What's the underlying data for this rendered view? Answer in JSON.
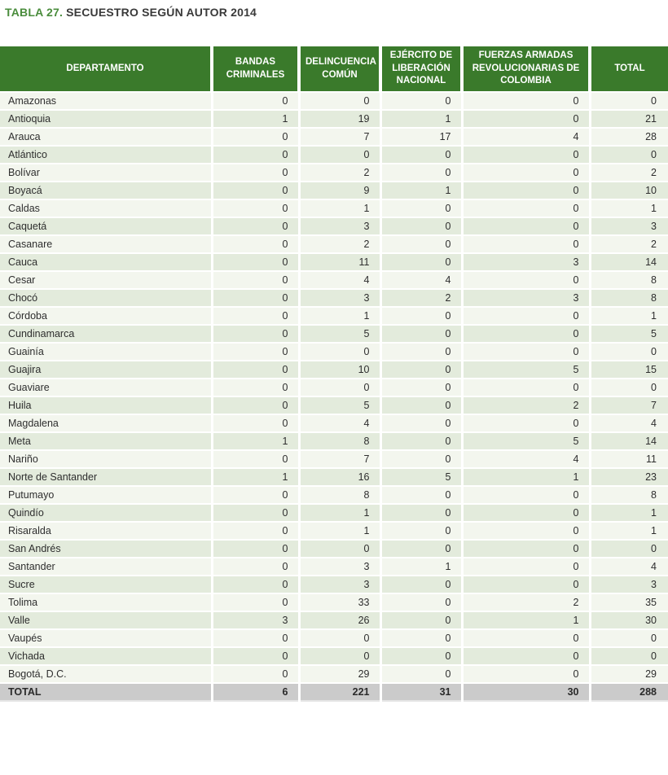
{
  "title": {
    "prefix": "TABLA 27.",
    "text": "SECUESTRO SEGÚN AUTOR 2014"
  },
  "colors": {
    "header_green": "#3a7a2b",
    "title_green": "#4a8c3c",
    "row_light": "#f3f6ee",
    "row_dark": "#e3ebdc",
    "total_row_gray": "#cbcbcb"
  },
  "chart_data": {
    "type": "table",
    "title": "TABLA 27. SECUESTRO SEGÚN AUTOR 2014",
    "columns": [
      "DEPARTAMENTO",
      "BANDAS CRIMINALES",
      "DELINCUENCIA COMÚN",
      "EJÉRCITO DE LIBERACIÓN NACIONAL",
      "FUERZAS ARMADAS REVOLUCIONARIAS DE COLOMBIA",
      "TOTAL"
    ],
    "rows": [
      {
        "department": "Amazonas",
        "values": [
          "0",
          "0",
          "0",
          "0",
          "0"
        ]
      },
      {
        "department": "Antioquia",
        "values": [
          "1",
          "19",
          "1",
          "0",
          "21"
        ]
      },
      {
        "department": "Arauca",
        "values": [
          "0",
          "7",
          "17",
          "4",
          "28"
        ]
      },
      {
        "department": "Atlántico",
        "values": [
          "0",
          "0",
          "0",
          "0",
          "0"
        ]
      },
      {
        "department": "Bolívar",
        "values": [
          "0",
          "2",
          "0",
          "0",
          "2"
        ]
      },
      {
        "department": "Boyacá",
        "values": [
          "0",
          "9",
          "1",
          "0",
          "10"
        ]
      },
      {
        "department": "Caldas",
        "values": [
          "0",
          "1",
          "0",
          "0",
          "1"
        ]
      },
      {
        "department": "Caquetá",
        "values": [
          "0",
          "3",
          "0",
          "0",
          "3"
        ]
      },
      {
        "department": "Casanare",
        "values": [
          "0",
          "2",
          "0",
          "0",
          "2"
        ]
      },
      {
        "department": "Cauca",
        "values": [
          "0",
          "11",
          "0",
          "3",
          "14"
        ]
      },
      {
        "department": "Cesar",
        "values": [
          "0",
          "4",
          "4",
          "0",
          "8"
        ]
      },
      {
        "department": "Chocó",
        "values": [
          "0",
          "3",
          "2",
          "3",
          "8"
        ]
      },
      {
        "department": "Córdoba",
        "values": [
          "0",
          "1",
          "0",
          "0",
          "1"
        ]
      },
      {
        "department": "Cundinamarca",
        "values": [
          "0",
          "5",
          "0",
          "0",
          "5"
        ]
      },
      {
        "department": "Guainía",
        "values": [
          "0",
          "0",
          "0",
          "0",
          "0"
        ]
      },
      {
        "department": "Guajira",
        "values": [
          "0",
          "10",
          "0",
          "5",
          "15"
        ]
      },
      {
        "department": "Guaviare",
        "values": [
          "0",
          "0",
          "0",
          "0",
          "0"
        ]
      },
      {
        "department": "Huila",
        "values": [
          "0",
          "5",
          "0",
          "2",
          "7"
        ]
      },
      {
        "department": "Magdalena",
        "values": [
          "0",
          "4",
          "0",
          "0",
          "4"
        ]
      },
      {
        "department": "Meta",
        "values": [
          "1",
          "8",
          "0",
          "5",
          "14"
        ]
      },
      {
        "department": "Nariño",
        "values": [
          "0",
          "7",
          "0",
          "4",
          "11"
        ]
      },
      {
        "department": "Norte de Santander",
        "values": [
          "1",
          "16",
          "5",
          "1",
          "23"
        ]
      },
      {
        "department": "Putumayo",
        "values": [
          "0",
          "8",
          "0",
          "0",
          "8"
        ]
      },
      {
        "department": "Quindío",
        "values": [
          "0",
          "1",
          "0",
          "0",
          "1"
        ]
      },
      {
        "department": "Risaralda",
        "values": [
          "0",
          "1",
          "0",
          "0",
          "1"
        ]
      },
      {
        "department": "San Andrés",
        "values": [
          "0",
          "0",
          "0",
          "0",
          "0"
        ]
      },
      {
        "department": "Santander",
        "values": [
          "0",
          "3",
          "1",
          "0",
          "4"
        ]
      },
      {
        "department": "Sucre",
        "values": [
          "0",
          "3",
          "0",
          "0",
          "3"
        ]
      },
      {
        "department": "Tolima",
        "values": [
          "0",
          "33",
          "0",
          "2",
          "35"
        ]
      },
      {
        "department": "Valle",
        "values": [
          "3",
          "26",
          "0",
          "1",
          "30"
        ]
      },
      {
        "department": "Vaupés",
        "values": [
          "0",
          "0",
          "0",
          "0",
          "0"
        ]
      },
      {
        "department": "Vichada",
        "values": [
          "0",
          "0",
          "0",
          "0",
          "0"
        ]
      },
      {
        "department": "Bogotá, D.C.",
        "values": [
          "0",
          "29",
          "0",
          "0",
          "29"
        ]
      }
    ],
    "total_row": {
      "label": "TOTAL",
      "values": [
        "6",
        "221",
        "31",
        "30",
        "288"
      ]
    }
  }
}
